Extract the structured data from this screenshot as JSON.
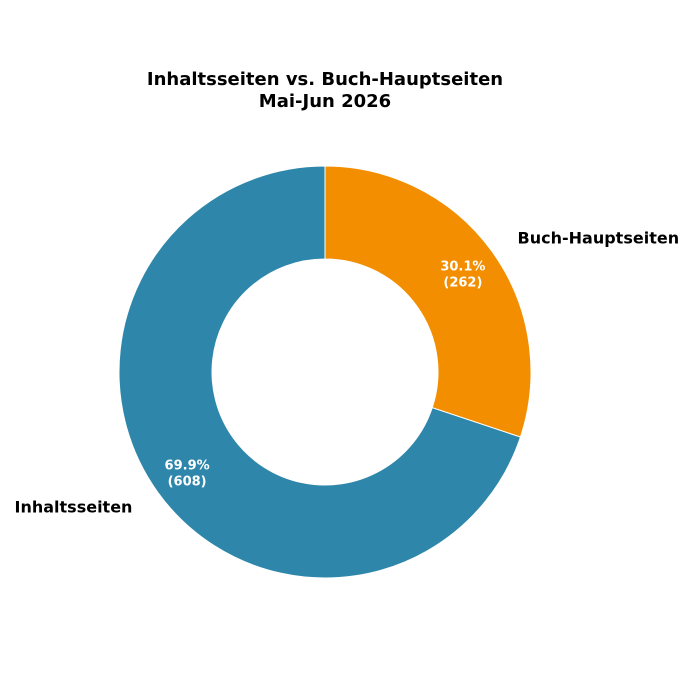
{
  "chart_data": {
    "type": "pie",
    "variant": "donut",
    "title_lines": [
      "Inhaltsseiten vs. Buch-Hauptseiten",
      "Mai-Jun 2026"
    ],
    "slices": [
      {
        "label": "Buch-Hauptseiten",
        "value": 262,
        "percent_label": "30.1%",
        "count_label": "(262)",
        "color": "#f28e00"
      },
      {
        "label": "Inhaltsseiten",
        "value": 608,
        "percent_label": "69.9%",
        "count_label": "(608)",
        "color": "#2e87aa"
      }
    ],
    "start_angle": "top",
    "direction": "clockwise",
    "legend": "none"
  }
}
